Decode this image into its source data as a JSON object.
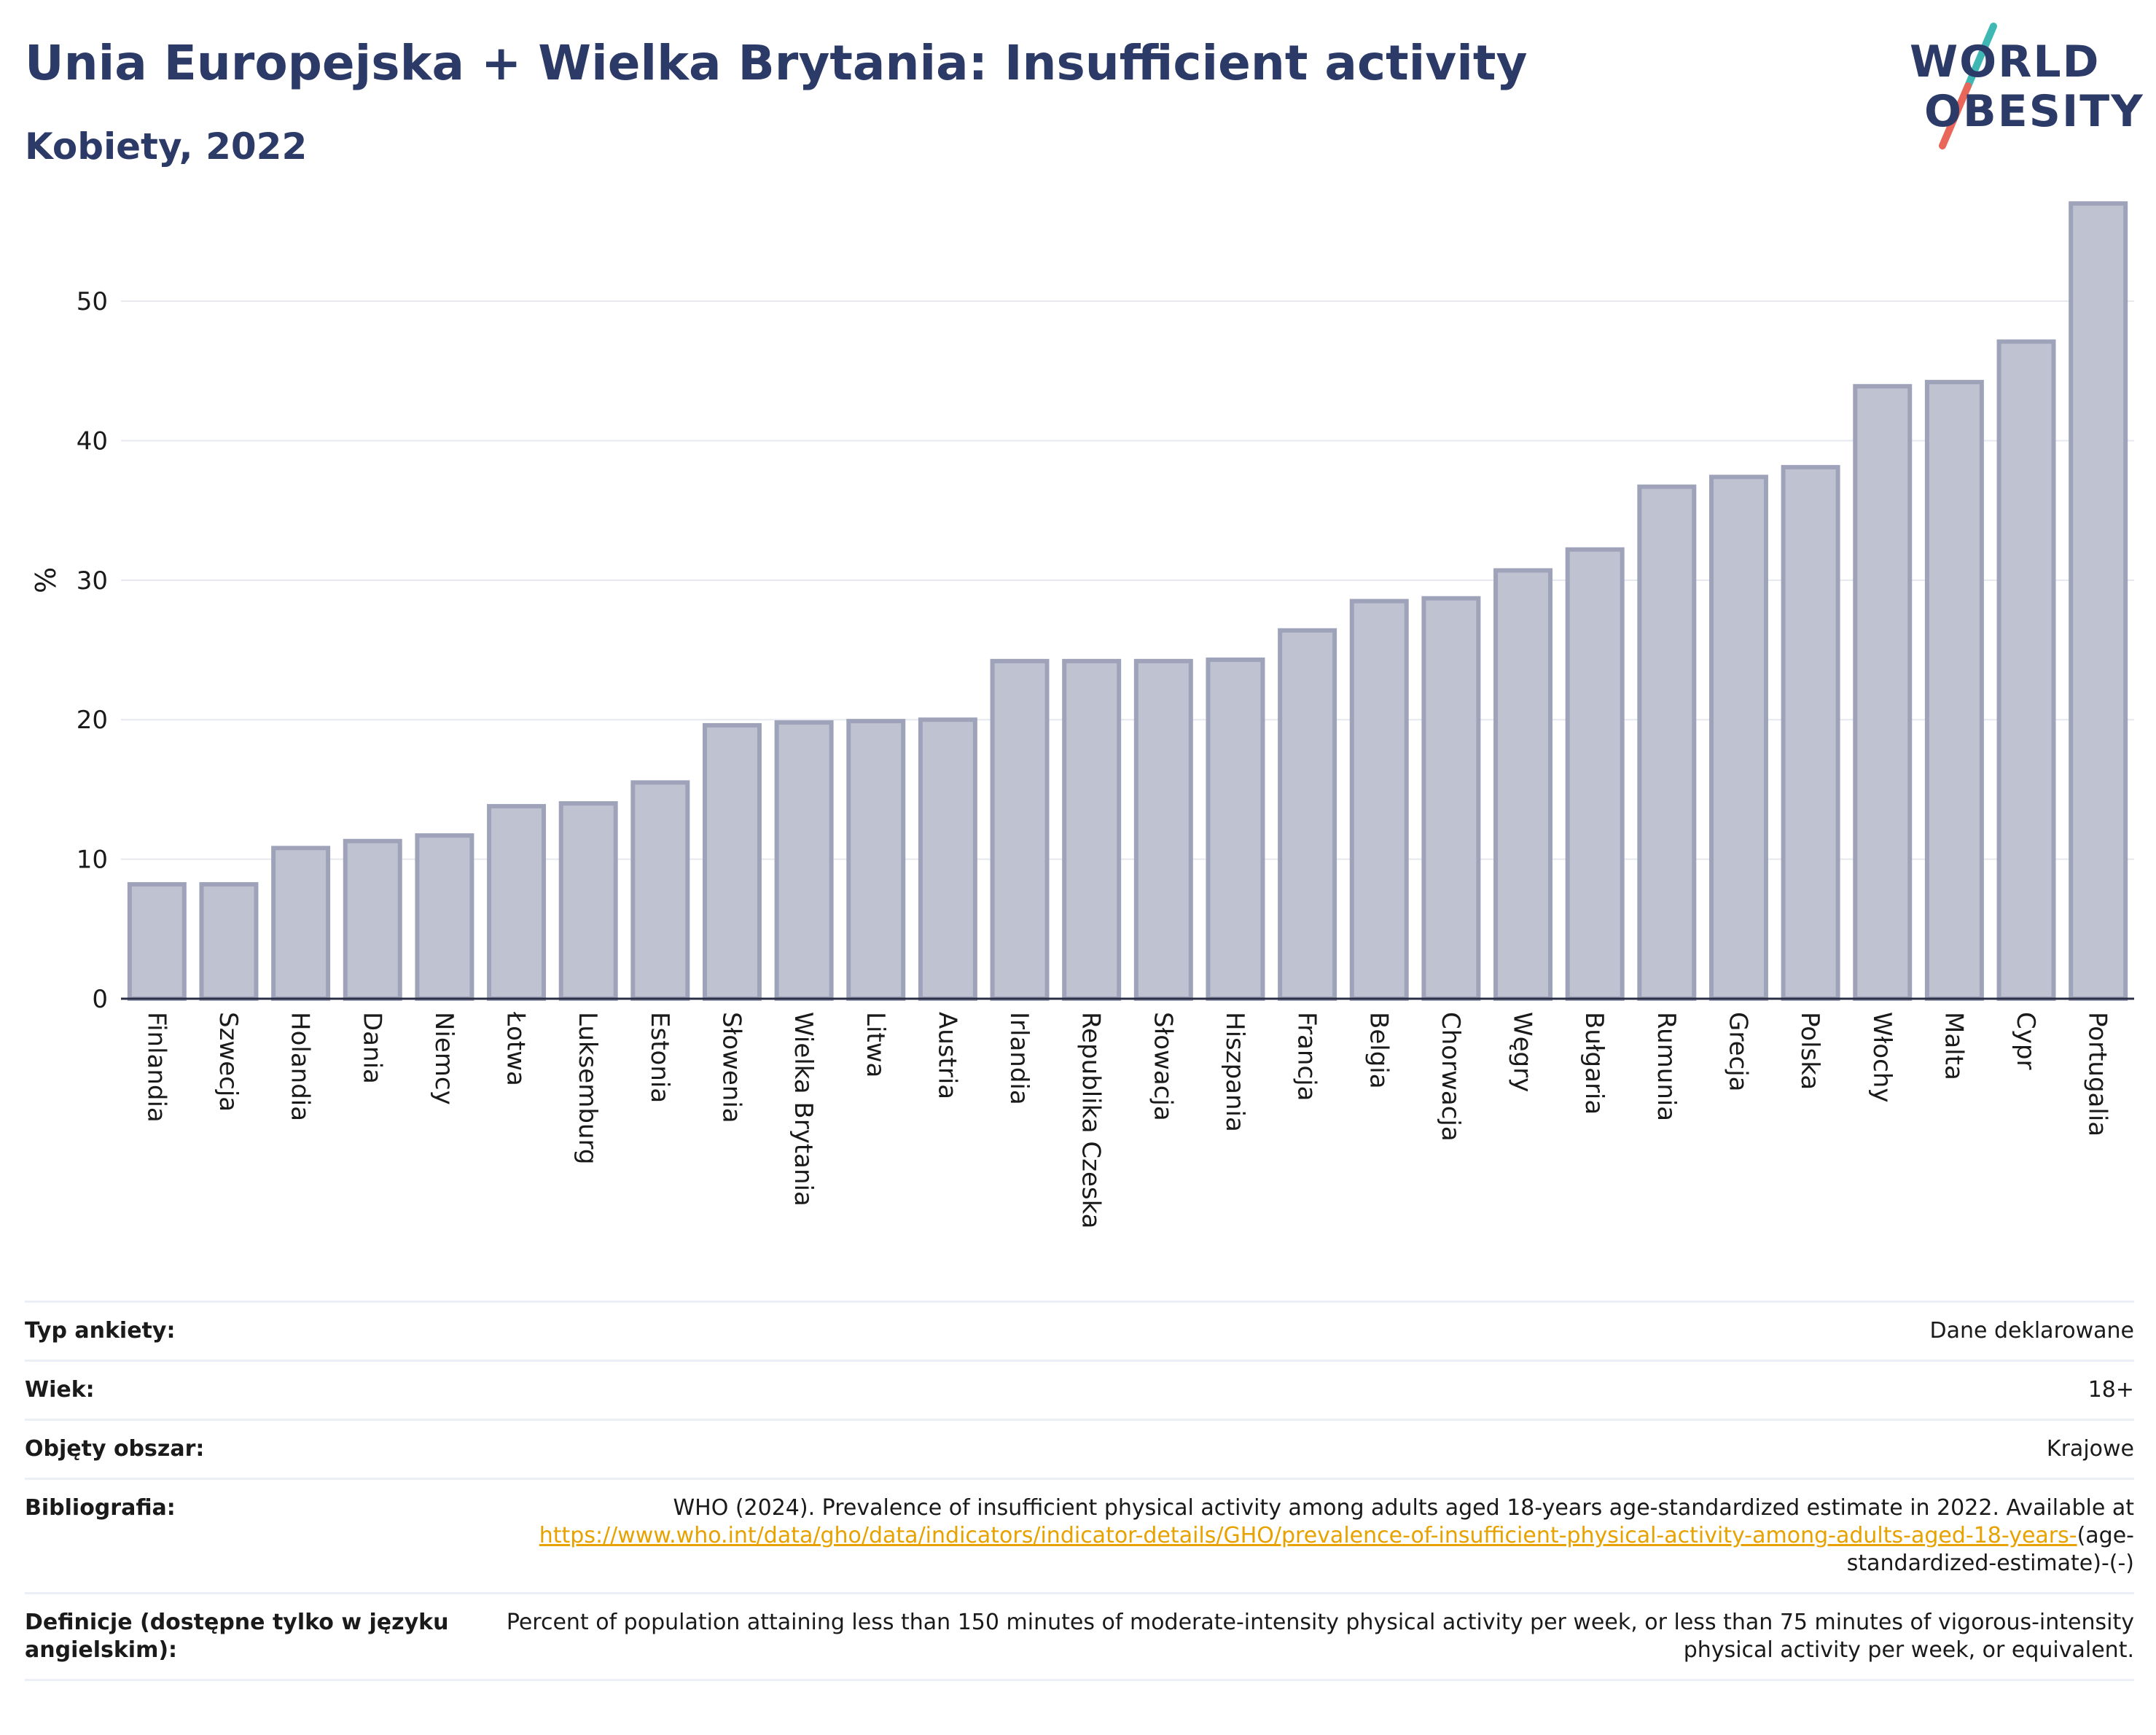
{
  "header": {
    "title": "Unia Europejska + Wielka Brytania: Insufficient activity",
    "subtitle": "Kobiety, 2022"
  },
  "logo": {
    "line1": "WORLD",
    "line2": "OBESITY",
    "colors": {
      "text": "#2b3a67",
      "slash_top": "#3fb8b4",
      "slash_bottom": "#e8665a"
    }
  },
  "chart_data": {
    "type": "bar",
    "ylabel": "%",
    "ylim": [
      0,
      58
    ],
    "yticks": [
      0,
      10,
      20,
      30,
      40,
      50
    ],
    "grid": true,
    "bar_color": "#bfc3d1",
    "bar_edge_color": "#9ea3ba",
    "categories": [
      "Finlandia",
      "Szwecja",
      "Holandia",
      "Dania",
      "Niemcy",
      "Łotwa",
      "Luksemburg",
      "Estonia",
      "Słowenia",
      "Wielka Brytania",
      "Litwa",
      "Austria",
      "Irlandia",
      "Republika Czeska",
      "Słowacja",
      "Hiszpania",
      "Francja",
      "Belgia",
      "Chorwacja",
      "Węgry",
      "Bułgaria",
      "Rumunia",
      "Grecja",
      "Polska",
      "Włochy",
      "Malta",
      "Cypr",
      "Portugalia"
    ],
    "values": [
      8.2,
      8.2,
      10.8,
      11.3,
      11.7,
      13.8,
      14.0,
      15.5,
      19.6,
      19.8,
      19.9,
      20.0,
      24.2,
      24.2,
      24.2,
      24.3,
      26.4,
      28.5,
      28.7,
      30.7,
      32.2,
      36.7,
      37.4,
      38.1,
      43.9,
      44.2,
      47.1,
      57.0
    ]
  },
  "meta": {
    "rows": [
      {
        "key": "Typ ankiety:",
        "value": "Dane deklarowane"
      },
      {
        "key": "Wiek:",
        "value": "18+"
      },
      {
        "key": "Objęty obszar:",
        "value": "Krajowe"
      },
      {
        "key": "Bibliografia:",
        "value": "WHO (2024). Prevalence of insufficient physical activity among adults aged 18-years age-standardized estimate in 2022. Available at",
        "link": "https://www.who.int/data/gho/data/indicators/indicator-details/GHO/prevalence-of-insufficient-physical-activity-among-adults-aged-18-years-",
        "suffix": "(age-standardized-estimate)-(-)"
      },
      {
        "key": "Definicje (dostępne tylko w języku angielskim):",
        "value": "Percent of population attaining less than 150 minutes of moderate-intensity physical activity per week, or less than 75 minutes of vigorous-intensity physical activity per week, or equivalent."
      }
    ],
    "link_color": "#e8a200"
  }
}
